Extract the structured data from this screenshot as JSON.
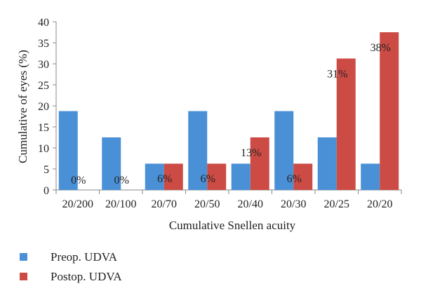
{
  "chart_data": {
    "type": "bar",
    "title": "",
    "xlabel": "Cumulative Snellen acuity",
    "ylabel": "Cumulative of eyes (%)",
    "categories": [
      "20/200",
      "20/100",
      "20/70",
      "20/50",
      "20/40",
      "20/30",
      "20/25",
      "20/20"
    ],
    "ylim": [
      0,
      40
    ],
    "yticks": [
      0,
      5,
      10,
      15,
      20,
      25,
      30,
      35,
      40
    ],
    "grid": false,
    "legend_position": "bottom-left",
    "series": [
      {
        "name": "Preop. UDVA",
        "color": "#4a90d6",
        "values": [
          18.75,
          12.5,
          6.25,
          18.75,
          6.25,
          18.75,
          12.5,
          6.25
        ]
      },
      {
        "name": "Postop. UDVA",
        "color": "#cc4b45",
        "values": [
          0,
          0,
          6.25,
          6.25,
          12.5,
          6.25,
          31.25,
          37.5
        ],
        "data_labels": [
          "0%",
          "0%",
          "6%",
          "6%",
          "13%",
          "6%",
          "31%",
          "38%"
        ]
      }
    ]
  }
}
